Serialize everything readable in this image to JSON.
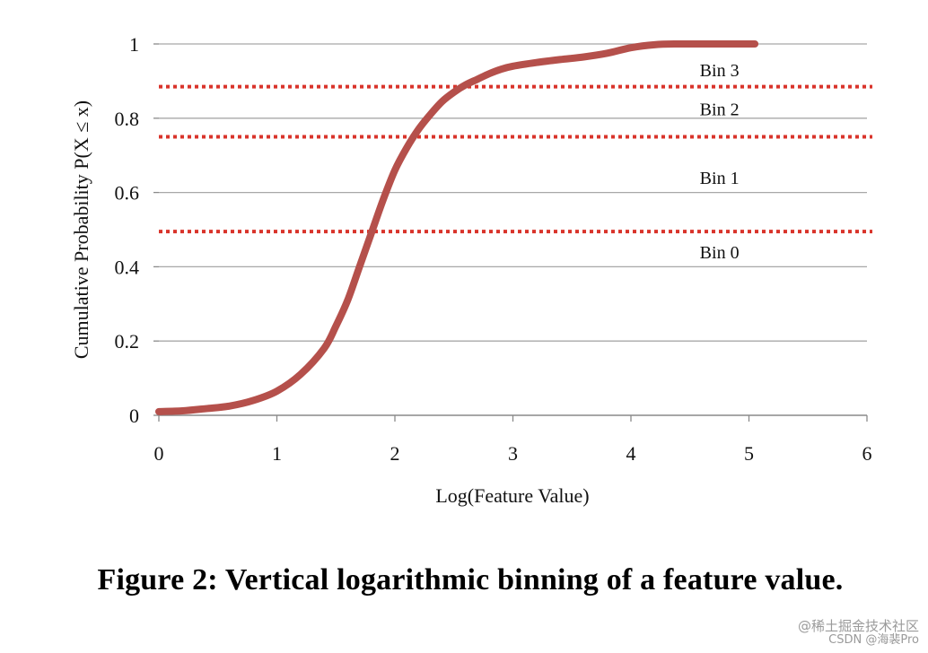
{
  "chart_data": {
    "type": "line",
    "title": "",
    "xlabel": "Log(Feature Value)",
    "ylabel": "Cumulative Probability P(X ≤ x)",
    "xlim": [
      0,
      6
    ],
    "ylim": [
      0,
      1
    ],
    "x_ticks": [
      "0",
      "1",
      "2",
      "3",
      "4",
      "5",
      "6"
    ],
    "y_ticks": [
      "0",
      "0.2",
      "0.4",
      "0.6",
      "0.8",
      "1"
    ],
    "grid": "horizontal",
    "series": [
      {
        "color": "#b5504b",
        "x": [
          0,
          0.2,
          0.4,
          0.6,
          0.8,
          1.0,
          1.2,
          1.4,
          1.5,
          1.6,
          1.7,
          1.8,
          1.9,
          2.0,
          2.1,
          2.2,
          2.3,
          2.4,
          2.5,
          2.6,
          2.7,
          2.8,
          2.9,
          3.0,
          3.2,
          3.4,
          3.6,
          3.8,
          4.0,
          4.2,
          4.4,
          4.6,
          4.8,
          5.05
        ],
        "y": [
          0.01,
          0.012,
          0.018,
          0.025,
          0.04,
          0.065,
          0.11,
          0.18,
          0.24,
          0.31,
          0.4,
          0.49,
          0.58,
          0.66,
          0.72,
          0.77,
          0.81,
          0.845,
          0.87,
          0.89,
          0.905,
          0.92,
          0.932,
          0.94,
          0.95,
          0.958,
          0.965,
          0.975,
          0.99,
          0.998,
          1.0,
          1.0,
          1.0,
          1.0
        ]
      }
    ],
    "bin_thresholds": [
      {
        "y": 0.495,
        "color": "#d9342b"
      },
      {
        "y": 0.75,
        "color": "#d9342b"
      },
      {
        "y": 0.885,
        "color": "#d9342b"
      }
    ],
    "bin_labels": [
      {
        "text": "Bin 0",
        "x": 4.75,
        "y": 0.44
      },
      {
        "text": "Bin 1",
        "x": 4.75,
        "y": 0.64
      },
      {
        "text": "Bin 2",
        "x": 4.75,
        "y": 0.825
      },
      {
        "text": "Bin 3",
        "x": 4.75,
        "y": 0.93
      }
    ]
  },
  "caption": "Figure 2: Vertical logarithmic binning of a feature value.",
  "watermark": {
    "line1": "@稀土掘金技术社区",
    "line2": "CSDN @海裴Pro"
  }
}
